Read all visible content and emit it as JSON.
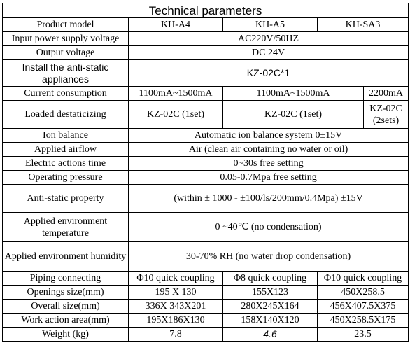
{
  "title": "Technical parameters",
  "header": {
    "label": "Product model",
    "models": [
      "KH-A4",
      "KH-A5",
      "KH-SA3"
    ]
  },
  "rows": {
    "input_voltage": {
      "label": "Input power supply voltage",
      "value": "AC220V/50HZ"
    },
    "output_voltage": {
      "label": "Output voltage",
      "value": "DC 24V"
    },
    "install_appliances": {
      "label": "Install the anti-static appliances",
      "value": "KZ-02C*1"
    },
    "current": {
      "label": "Current consumption",
      "a4": "1100mA~1500mA",
      "a5": "1100mA~1500mA",
      "sa3": "2200mA"
    },
    "loaded": {
      "label": "Loaded destaticizing",
      "a4": "KZ-02C (1set)",
      "a5": "KZ-02C (1set)",
      "sa3": "KZ-02C (2sets)"
    },
    "ion_balance": {
      "label": "Ion balance",
      "value": "Automatic ion balance system 0±15V"
    },
    "airflow": {
      "label": "Applied airflow",
      "value": "Air (clean air containing no water or oil)"
    },
    "electric_time": {
      "label": "Electric actions time",
      "value": "0~30s free setting"
    },
    "pressure": {
      "label": "Operating pressure",
      "value": "0.05-0.7Mpa free setting"
    },
    "antistatic": {
      "label": "Anti-static property",
      "value": "(within ± 1000 - ±100/ls/200mm/0.4Mpa) ±15V"
    },
    "env_temp": {
      "label": "Applied environment temperature",
      "value": "0 ~40℃ (no condensation)"
    },
    "env_humidity": {
      "label": "Applied environment humidity",
      "value": "30-70% RH (no water drop condensation)"
    },
    "piping": {
      "label": "Piping connecting",
      "a4": "Φ10 quick coupling",
      "a5": "Φ8 quick coupling",
      "sa3": "Φ10 quick coupling"
    },
    "openings": {
      "label": "Openings size(mm)",
      "a4": "195 X 130",
      "a5": "155X123",
      "sa3": "450X258.5"
    },
    "overall": {
      "label": "Overall size(mm)",
      "a4": "336X 343X201",
      "a5": "280X245X164",
      "sa3": "456X407.5X375"
    },
    "work_area": {
      "label": "Work action area(mm)",
      "a4": "195X186X130",
      "a5": "158X140X120",
      "sa3": "450X258.5X175"
    },
    "weight": {
      "label": "Weight (kg)",
      "a4": "7.8",
      "a5": "4.6",
      "sa3": "23.5"
    }
  }
}
